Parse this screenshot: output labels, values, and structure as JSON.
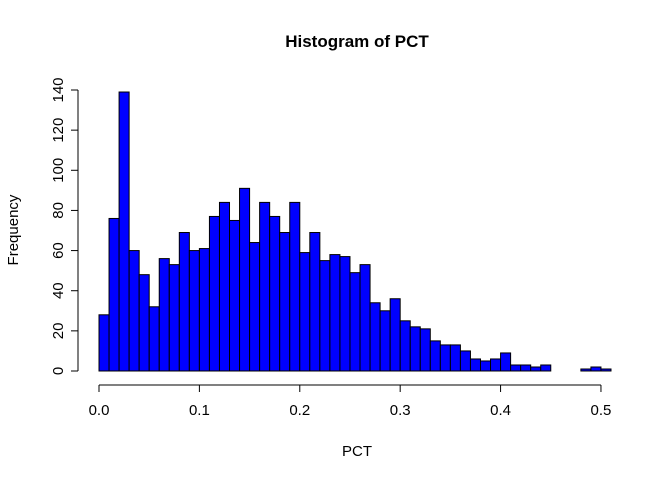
{
  "chart_data": {
    "type": "bar",
    "title": "Histogram of PCT",
    "xlabel": "PCT",
    "ylabel": "Frequency",
    "bar_color": "#0000ff",
    "bar_border_color": "#000000",
    "bin_width": 0.01,
    "bin_start": 0.0,
    "xlim": [
      0.0,
      0.51
    ],
    "ylim": [
      0,
      140
    ],
    "x_ticks": [
      {
        "value": 0.0,
        "label": "0.0"
      },
      {
        "value": 0.1,
        "label": "0.1"
      },
      {
        "value": 0.2,
        "label": "0.2"
      },
      {
        "value": 0.3,
        "label": "0.3"
      },
      {
        "value": 0.4,
        "label": "0.4"
      },
      {
        "value": 0.5,
        "label": "0.5"
      }
    ],
    "y_ticks": [
      {
        "value": 0,
        "label": "0"
      },
      {
        "value": 20,
        "label": "20"
      },
      {
        "value": 40,
        "label": "40"
      },
      {
        "value": 60,
        "label": "60"
      },
      {
        "value": 80,
        "label": "80"
      },
      {
        "value": 100,
        "label": "100"
      },
      {
        "value": 120,
        "label": "120"
      },
      {
        "value": 140,
        "label": "140"
      }
    ],
    "values": [
      28,
      76,
      139,
      60,
      48,
      32,
      56,
      53,
      69,
      60,
      61,
      77,
      84,
      75,
      91,
      64,
      84,
      77,
      69,
      84,
      59,
      69,
      55,
      58,
      57,
      49,
      53,
      34,
      30,
      36,
      25,
      22,
      21,
      15,
      13,
      13,
      10,
      6,
      5,
      6,
      9,
      3,
      3,
      2,
      3,
      0,
      0,
      0,
      1,
      2,
      1
    ]
  }
}
